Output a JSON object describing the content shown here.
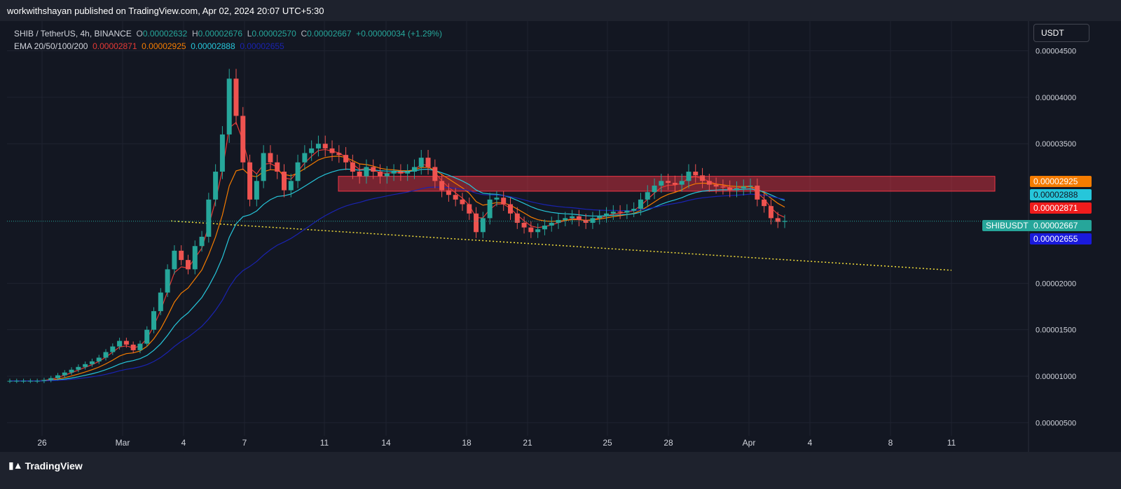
{
  "header": {
    "publish_text": "workwithshayan published on TradingView.com, Apr 02, 2024 20:07 UTC+5:30"
  },
  "legend": {
    "symbol": "SHIB / TetherUS, 4h, BINANCE",
    "o_label": "O",
    "o_value": "0.00002632",
    "h_label": "H",
    "h_value": "0.00002676",
    "l_label": "L",
    "l_value": "0.00002570",
    "c_label": "C",
    "c_value": "0.00002667",
    "change": "+0.00000034 (+1.29%)",
    "ema_label": "EMA 20/50/100/200",
    "ema20": "0.00002871",
    "ema50": "0.00002925",
    "ema100": "0.00002888",
    "ema200": "0.00002655"
  },
  "currency_button": "USDT",
  "price_tags": {
    "ema50": "0.00002925",
    "ema100": "0.00002888",
    "ema20": "0.00002871",
    "symbol_name": "SHIBUSDT",
    "last": "0.00002667",
    "ema200": "0.00002655"
  },
  "footer": {
    "brand": "TradingView"
  },
  "colors": {
    "up": "#26a69a",
    "down": "#ef5350",
    "ema20": "#e53935",
    "ema50": "#f57c00",
    "ema100": "#26c6da",
    "ema200": "#1a23b0",
    "trendline": "#f5e03a",
    "zone": "#f23645"
  },
  "chart_data": {
    "type": "candlestick",
    "timeframe": "4h",
    "x_ticks": [
      "26",
      "Mar",
      "4",
      "7",
      "11",
      "14",
      "18",
      "21",
      "25",
      "28",
      "Apr",
      "4",
      "8",
      "11"
    ],
    "y_ticks": [
      "0.00004500",
      "0.00004000",
      "0.00003500",
      "0.00002000",
      "0.00001500",
      "0.00001000",
      "0.00000500"
    ],
    "ylim": [
      3.6e-06,
      4.82e-05
    ],
    "last_price": 2.667e-05,
    "closes": [
      9.5e-06,
      9.5e-06,
      9.5e-06,
      9.5e-06,
      9.5e-06,
      9.6e-06,
      9.8e-06,
      1.01e-05,
      1.04e-05,
      1.07e-05,
      1.1e-05,
      1.13e-05,
      1.16e-05,
      1.2e-05,
      1.26e-05,
      1.32e-05,
      1.38e-05,
      1.34e-05,
      1.28e-05,
      1.35e-05,
      1.5e-05,
      1.7e-05,
      1.9e-05,
      2.15e-05,
      2.35e-05,
      2.25e-05,
      2.15e-05,
      2.4e-05,
      2.5e-05,
      2.9e-05,
      3.2e-05,
      3.6e-05,
      4.2e-05,
      3.8e-05,
      3.3e-05,
      2.9e-05,
      3.1e-05,
      3.4e-05,
      3.3e-05,
      3.2e-05,
      3e-05,
      3.1e-05,
      3.3e-05,
      3.4e-05,
      3.45e-05,
      3.5e-05,
      3.45e-05,
      3.4e-05,
      3.38e-05,
      3.3e-05,
      3.2e-05,
      3.15e-05,
      3.25e-05,
      3.2e-05,
      3.15e-05,
      3.18e-05,
      3.2e-05,
      3.18e-05,
      3.2e-05,
      3.25e-05,
      3.35e-05,
      3.25e-05,
      3.1e-05,
      3e-05,
      2.95e-05,
      2.9e-05,
      2.85e-05,
      2.75e-05,
      2.55e-05,
      2.7e-05,
      2.9e-05,
      2.92e-05,
      2.85e-05,
      2.75e-05,
      2.65e-05,
      2.6e-05,
      2.55e-05,
      2.58e-05,
      2.62e-05,
      2.65e-05,
      2.68e-05,
      2.7e-05,
      2.72e-05,
      2.68e-05,
      2.65e-05,
      2.7e-05,
      2.72e-05,
      2.75e-05,
      2.77e-05,
      2.76e-05,
      2.78e-05,
      2.8e-05,
      2.9e-05,
      2.98e-05,
      3.05e-05,
      3.1e-05,
      3.08e-05,
      3.06e-05,
      3.1e-05,
      3.2e-05,
      3.16e-05,
      3.1e-05,
      3.06e-05,
      3.04e-05,
      3.03e-05,
      3e-05,
      3.02e-05,
      3.04e-05,
      3.05e-05,
      2.9e-05,
      2.83e-05,
      2.7e-05,
      2.66e-05,
      2.67e-05
    ],
    "ema_series": [
      {
        "name": "EMA 20",
        "color": "#e53935",
        "last": 2.871e-05
      },
      {
        "name": "EMA 50",
        "color": "#f57c00",
        "last": 2.925e-05
      },
      {
        "name": "EMA 100",
        "color": "#26c6da",
        "last": 2.888e-05
      },
      {
        "name": "EMA 200",
        "color": "#1a23b0",
        "last": 2.655e-05
      }
    ],
    "resistance_zone": {
      "low": 2.99e-05,
      "high": 3.15e-05
    },
    "trendline": {
      "start": 2.67e-05,
      "end": 2.14e-05
    }
  }
}
